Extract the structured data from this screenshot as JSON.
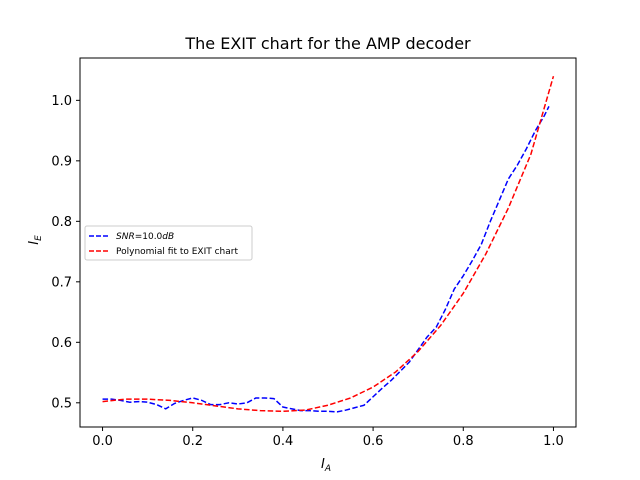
{
  "chart_data": {
    "type": "line",
    "title": "The EXIT chart for the AMP decoder",
    "xlabel_main": "I",
    "xlabel_sub": "A",
    "ylabel_main": "I",
    "ylabel_sub": "E",
    "xlim": [
      -0.05,
      1.05
    ],
    "ylim": [
      0.46,
      1.07
    ],
    "xticks": [
      0.0,
      0.2,
      0.4,
      0.6,
      0.8,
      1.0
    ],
    "xtick_labels": [
      "0.0",
      "0.2",
      "0.4",
      "0.6",
      "0.8",
      "1.0"
    ],
    "yticks": [
      0.5,
      0.6,
      0.7,
      0.8,
      0.9,
      1.0
    ],
    "ytick_labels": [
      "0.5",
      "0.6",
      "0.7",
      "0.8",
      "0.9",
      "1.0"
    ],
    "grid": false,
    "legend_position": "center-left",
    "series": [
      {
        "name": "SNR=10.0dB",
        "name_parts": [
          "SNR",
          "=10.0",
          "dB"
        ],
        "color": "#0000ff",
        "style": "dashed",
        "x": [
          0.0,
          0.02,
          0.04,
          0.06,
          0.08,
          0.1,
          0.12,
          0.14,
          0.16,
          0.18,
          0.2,
          0.22,
          0.24,
          0.26,
          0.28,
          0.3,
          0.32,
          0.34,
          0.36,
          0.38,
          0.4,
          0.42,
          0.44,
          0.46,
          0.48,
          0.5,
          0.52,
          0.54,
          0.56,
          0.58,
          0.6,
          0.62,
          0.64,
          0.66,
          0.68,
          0.7,
          0.72,
          0.74,
          0.76,
          0.78,
          0.8,
          0.82,
          0.84,
          0.86,
          0.88,
          0.9,
          0.92,
          0.94,
          0.96,
          0.98,
          0.99
        ],
        "y": [
          0.506,
          0.506,
          0.504,
          0.501,
          0.502,
          0.501,
          0.497,
          0.49,
          0.499,
          0.504,
          0.508,
          0.504,
          0.497,
          0.497,
          0.5,
          0.498,
          0.5,
          0.508,
          0.508,
          0.507,
          0.493,
          0.49,
          0.487,
          0.487,
          0.486,
          0.486,
          0.485,
          0.488,
          0.492,
          0.496,
          0.51,
          0.524,
          0.537,
          0.552,
          0.567,
          0.588,
          0.609,
          0.625,
          0.654,
          0.688,
          0.71,
          0.735,
          0.762,
          0.8,
          0.835,
          0.87,
          0.893,
          0.92,
          0.95,
          0.975,
          0.99
        ]
      },
      {
        "name": "Polynomial fit to EXIT chart",
        "color": "#ff0000",
        "style": "dashed",
        "x": [
          0.0,
          0.05,
          0.1,
          0.15,
          0.2,
          0.25,
          0.3,
          0.35,
          0.4,
          0.45,
          0.5,
          0.55,
          0.6,
          0.65,
          0.7,
          0.75,
          0.8,
          0.85,
          0.9,
          0.95,
          1.0
        ],
        "y": [
          0.502,
          0.506,
          0.506,
          0.504,
          0.5,
          0.495,
          0.49,
          0.487,
          0.486,
          0.488,
          0.496,
          0.508,
          0.526,
          0.551,
          0.585,
          0.628,
          0.681,
          0.746,
          0.822,
          0.911,
          1.04
        ]
      }
    ]
  }
}
